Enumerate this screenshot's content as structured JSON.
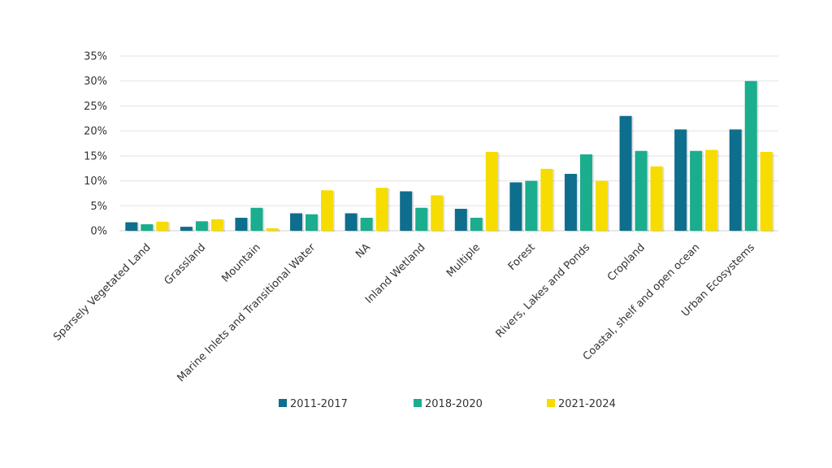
{
  "chart_data": {
    "type": "bar",
    "categories": [
      "Sparsely Vegetated Land",
      "Grassland",
      "Mountain",
      "Marine Inlets and Transitional Water",
      "NA",
      "Inland Wetland",
      "Multiple",
      "Forest",
      "Rivers, Lakes and Ponds",
      "Cropland",
      "Coastal, shelf and open ocean",
      "Urban Ecosystems"
    ],
    "series": [
      {
        "name": "2011-2017",
        "color": "#0e6e8e",
        "values": [
          1.7,
          0.8,
          2.6,
          3.5,
          3.5,
          7.9,
          4.4,
          9.7,
          11.4,
          23.0,
          20.3,
          20.3
        ]
      },
      {
        "name": "2018-2020",
        "color": "#1aad8e",
        "values": [
          1.3,
          1.9,
          4.6,
          3.3,
          2.6,
          4.6,
          2.6,
          10.0,
          15.3,
          16.0,
          16.0,
          30.0
        ]
      },
      {
        "name": "2021-2024",
        "color": "#f7dc00",
        "values": [
          1.8,
          2.3,
          0.5,
          8.1,
          8.6,
          7.1,
          15.8,
          12.4,
          10.0,
          12.9,
          16.2,
          15.8
        ]
      }
    ],
    "y_ticks": [
      "0%",
      "5%",
      "10%",
      "15%",
      "20%",
      "25%",
      "30%",
      "35%"
    ],
    "ylim": [
      0,
      35
    ],
    "title": "",
    "xlabel": "",
    "ylabel": "",
    "grid": true,
    "legend_position": "bottom-center"
  }
}
